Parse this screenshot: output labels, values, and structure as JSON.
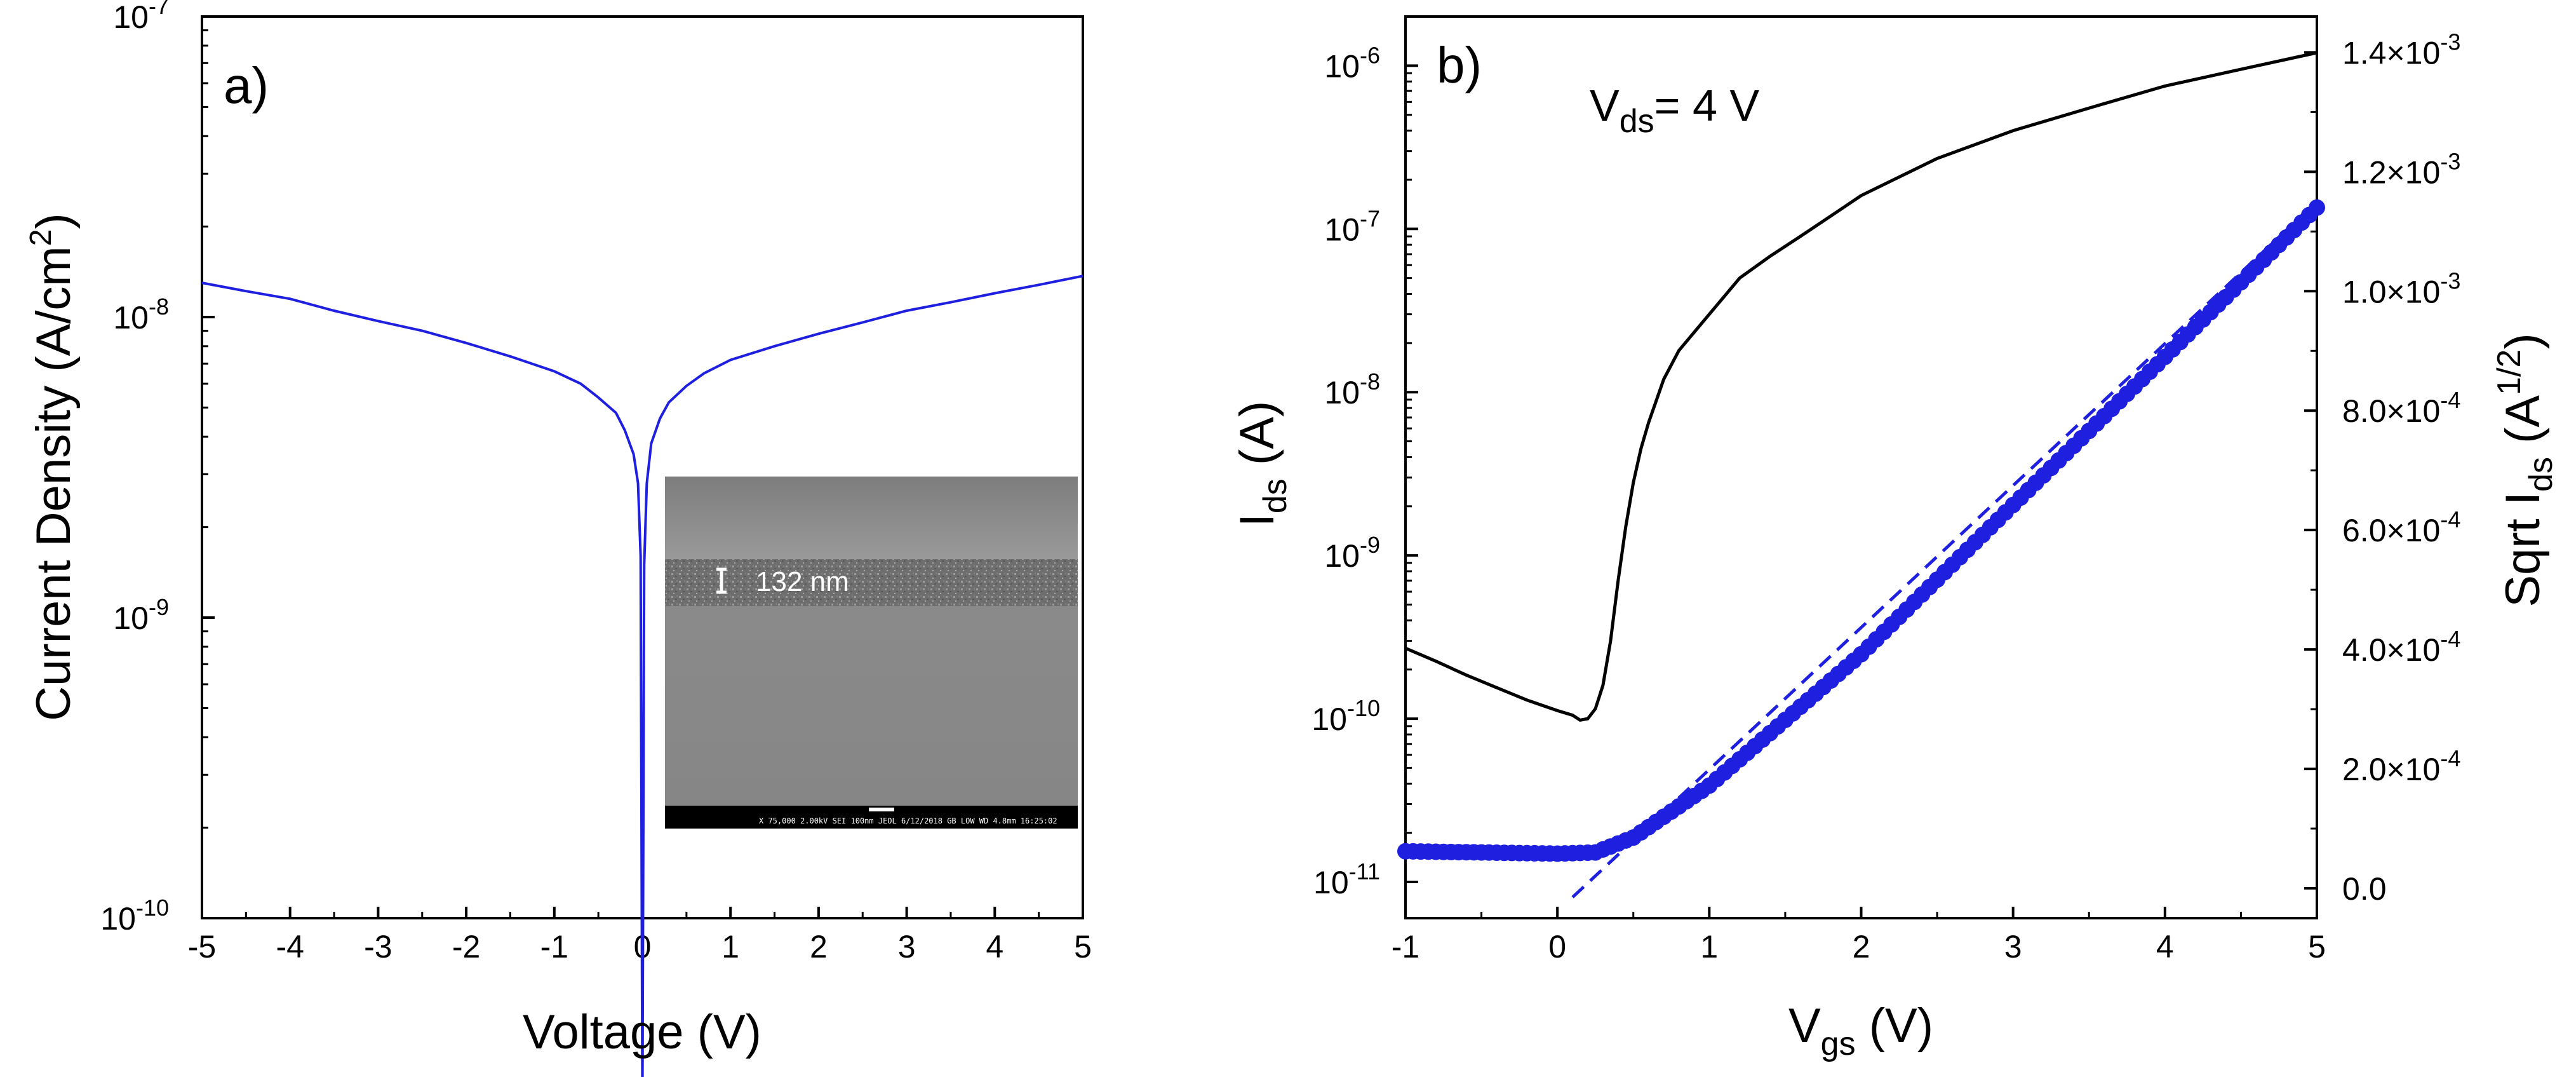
{
  "chart_data": [
    {
      "panel_label": "a)",
      "type": "line",
      "xlabel": "Voltage (V)",
      "ylabel": "Current Density (A/cm",
      "ylabel_sup": "2",
      "ylabel_close": ")",
      "y_scale": "log",
      "xlim": [
        -5,
        5
      ],
      "ylim": [
        1e-10,
        1e-07
      ],
      "x_ticks": [
        -5,
        -4,
        -3,
        -2,
        -1,
        0,
        1,
        2,
        3,
        4,
        5
      ],
      "x_tick_labels": [
        "-5",
        "-4",
        "-3",
        "-2",
        "-1",
        "0",
        "1",
        "2",
        "3",
        "4",
        "5"
      ],
      "y_ticks": [
        {
          "value": 1e-10,
          "base": "10",
          "exp": "-10"
        },
        {
          "value": 1e-09,
          "base": "10",
          "exp": "-9"
        },
        {
          "value": 1e-08,
          "base": "10",
          "exp": "-8"
        },
        {
          "value": 1e-07,
          "base": "10",
          "exp": "-7"
        }
      ],
      "grid": false,
      "series": [
        {
          "color": "#1f1fe0",
          "x": [
            -5,
            -4.5,
            -4,
            -3.5,
            -3,
            -2.5,
            -2,
            -1.5,
            -1,
            -0.7,
            -0.5,
            -0.3,
            -0.2,
            -0.1,
            -0.05,
            -0.02,
            0.0,
            0.02,
            0.05,
            0.1,
            0.2,
            0.3,
            0.5,
            0.7,
            1,
            1.5,
            2,
            2.5,
            3,
            3.5,
            4,
            4.5,
            5
          ],
          "y": [
            1.3e-08,
            1.22e-08,
            1.15e-08,
            1.05e-08,
            9.7e-09,
            9e-09,
            8.2e-09,
            7.4e-09,
            6.6e-09,
            6e-09,
            5.4e-09,
            4.8e-09,
            4.2e-09,
            3.5e-09,
            2.8e-09,
            1.6e-09,
            2.4e-11,
            1.5e-09,
            2.8e-09,
            3.8e-09,
            4.6e-09,
            5.2e-09,
            5.9e-09,
            6.5e-09,
            7.2e-09,
            8e-09,
            8.8e-09,
            9.6e-09,
            1.05e-08,
            1.12e-08,
            1.2e-08,
            1.28e-08,
            1.37e-08
          ]
        }
      ],
      "inset": {
        "kind": "SEM cross-section micrograph",
        "label": "132 nm",
        "info_text": "X 75,000    2.00kV SEI    100nm JEOL    6/12/2018    GB LOW  WD 4.8mm  16:25:02"
      }
    },
    {
      "panel_label": "b)",
      "type": "line",
      "annotation": {
        "main": "V",
        "sub": "ds",
        "rest": "= 4 V"
      },
      "xlabel": {
        "main": "V",
        "sub": "gs",
        "rest": " (V)"
      },
      "ylabel_left": {
        "main": "I",
        "sub": "ds",
        "rest": " (A)"
      },
      "ylabel_right": {
        "main": "Sqrt I",
        "sub": "ds",
        "rest": " (A",
        "sup": "1/2",
        "close": ")"
      },
      "xlim": [
        -1,
        5
      ],
      "x_ticks": [
        -1,
        0,
        1,
        2,
        3,
        4,
        5
      ],
      "x_tick_labels": [
        "-1",
        "0",
        "1",
        "2",
        "3",
        "4",
        "5"
      ],
      "y_left_scale": "log",
      "y_left_lim": [
        6e-12,
        2e-06
      ],
      "y_left_ticks": [
        {
          "value": 1e-11,
          "base": "10",
          "exp": "-11"
        },
        {
          "value": 1e-10,
          "base": "10",
          "exp": "-10"
        },
        {
          "value": 1e-09,
          "base": "10",
          "exp": "-9"
        },
        {
          "value": 1e-08,
          "base": "10",
          "exp": "-8"
        },
        {
          "value": 1e-07,
          "base": "10",
          "exp": "-7"
        },
        {
          "value": 1e-06,
          "base": "10",
          "exp": "-6"
        }
      ],
      "y_right_scale": "linear",
      "y_right_lim": [
        -5e-05,
        0.00146
      ],
      "y_right_ticks": [
        {
          "value": 0,
          "label": "0.0",
          "mant": "",
          "exp": ""
        },
        {
          "value": 0.0002,
          "label": "",
          "mant": "2.0×10",
          "exp": "-4"
        },
        {
          "value": 0.0004,
          "label": "",
          "mant": "4.0×10",
          "exp": "-4"
        },
        {
          "value": 0.0006,
          "label": "",
          "mant": "6.0×10",
          "exp": "-4"
        },
        {
          "value": 0.0008,
          "label": "",
          "mant": "8.0×10",
          "exp": "-4"
        },
        {
          "value": 0.001,
          "label": "",
          "mant": "1.0×10",
          "exp": "-3"
        },
        {
          "value": 0.0012,
          "label": "",
          "mant": "1.2×10",
          "exp": "-3"
        },
        {
          "value": 0.0014,
          "label": "",
          "mant": "1.4×10",
          "exp": "-3"
        }
      ],
      "grid": false,
      "series": [
        {
          "axis": "left",
          "style": "line",
          "color": "#000000",
          "x": [
            -1,
            -0.8,
            -0.6,
            -0.4,
            -0.2,
            0,
            0.1,
            0.15,
            0.2,
            0.25,
            0.3,
            0.35,
            0.4,
            0.45,
            0.5,
            0.55,
            0.6,
            0.7,
            0.8,
            1,
            1.2,
            1.4,
            1.6,
            1.8,
            2,
            2.5,
            3,
            3.5,
            4,
            4.5,
            5
          ],
          "y": [
            2.7e-10,
            2.25e-10,
            1.85e-10,
            1.55e-10,
            1.3e-10,
            1.12e-10,
            1.05e-10,
            9.8e-11,
            1e-10,
            1.15e-10,
            1.6e-10,
            3e-10,
            7e-10,
            1.5e-09,
            2.8e-09,
            4.5e-09,
            6.5e-09,
            1.2e-08,
            1.8e-08,
            3e-08,
            5e-08,
            6.8e-08,
            9e-08,
            1.2e-07,
            1.6e-07,
            2.7e-07,
            4e-07,
            5.5e-07,
            7.5e-07,
            9.5e-07,
            1.2e-06
          ]
        },
        {
          "axis": "right",
          "style": "markers",
          "color": "#1f1fe0",
          "x_start": -1,
          "x_end": 5,
          "count": 121,
          "points": [
            [
              -1,
              6.2e-05
            ],
            [
              0,
              5.8e-05
            ],
            [
              0.25,
              6e-05
            ],
            [
              0.5,
              8.5e-05
            ],
            [
              1,
              0.000172
            ],
            [
              2,
              0.000392
            ],
            [
              3,
              0.000642
            ],
            [
              4,
              0.00089
            ],
            [
              5,
              0.00114
            ]
          ]
        },
        {
          "axis": "right",
          "style": "dashed-fit",
          "color": "#1f1fe0",
          "x": [
            0.1,
            5
          ],
          "y": [
            -1.5e-05,
            0.00115
          ]
        }
      ]
    }
  ]
}
